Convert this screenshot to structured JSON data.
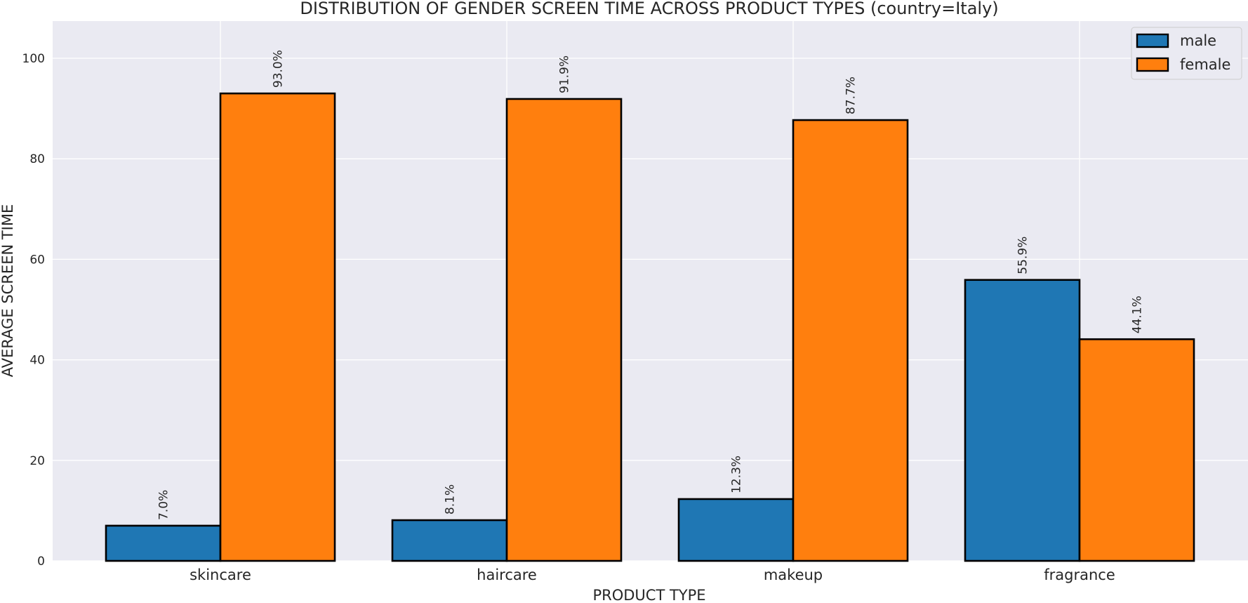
{
  "chart_data": {
    "type": "bar",
    "title": "DISTRIBUTION OF GENDER SCREEN TIME ACROSS PRODUCT TYPES (country=Italy)",
    "xlabel": "PRODUCT TYPE",
    "ylabel": "AVERAGE SCREEN TIME",
    "categories": [
      "skincare",
      "haircare",
      "makeup",
      "fragrance"
    ],
    "series": [
      {
        "name": "male",
        "color": "#1f77b4",
        "values": [
          7.0,
          8.1,
          12.3,
          55.9
        ],
        "labels": [
          "7.0%",
          "8.1%",
          "12.3%",
          "55.9%"
        ]
      },
      {
        "name": "female",
        "color": "#ff7f0e",
        "values": [
          93.0,
          91.9,
          87.7,
          44.1
        ],
        "labels": [
          "93.0%",
          "91.9%",
          "87.7%",
          "44.1%"
        ]
      }
    ],
    "ylim": [
      0,
      107.4
    ],
    "yticks": [
      0,
      20,
      40,
      60,
      80,
      100
    ],
    "grid": true,
    "legend_position": "top-right",
    "background_color": "#eaeaf2",
    "gridline_color": "#ffffff"
  }
}
